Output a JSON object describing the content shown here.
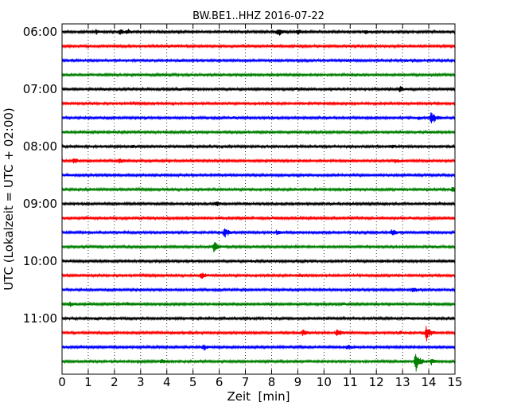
{
  "chart_data": {
    "type": "line",
    "title": "BW.BE1..HHZ 2016-07-22",
    "xlabel": "Zeit  [min]",
    "ylabel": "UTC (Lokalzeit = UTC + 02:00)",
    "xlim": [
      0,
      15
    ],
    "x_ticks": [
      0,
      1,
      2,
      3,
      4,
      5,
      6,
      7,
      8,
      9,
      10,
      11,
      12,
      13,
      14,
      15
    ],
    "y_tick_labels": [
      "06:00",
      "07:00",
      "08:00",
      "09:00",
      "10:00",
      "11:00"
    ],
    "grid": "vertical dotted at each minute",
    "trace_interval_min": 15,
    "trace_colors": [
      "#000000",
      "#ff0000",
      "#0000ff",
      "#008000"
    ],
    "series": [
      {
        "start": "06:00",
        "color": "#000000",
        "events": [
          [
            1.3,
            0.35
          ],
          [
            2.2,
            0.45
          ],
          [
            2.5,
            0.35
          ],
          [
            6.2,
            0.15
          ],
          [
            8.2,
            0.45
          ],
          [
            8.3,
            0.3
          ],
          [
            9.0,
            0.35
          ],
          [
            11.6,
            0.35
          ]
        ]
      },
      {
        "start": "06:15",
        "color": "#ff0000",
        "events": [
          [
            4.1,
            0.15
          ],
          [
            8.1,
            0.12
          ]
        ]
      },
      {
        "start": "06:30",
        "color": "#0000ff",
        "events": [
          [
            4.5,
            0.1
          ],
          [
            10.9,
            0.1
          ],
          [
            13.1,
            0.15
          ]
        ]
      },
      {
        "start": "06:45",
        "color": "#008000",
        "events": [
          [
            7.3,
            0.1
          ]
        ]
      },
      {
        "start": "07:00",
        "color": "#000000",
        "events": [
          [
            1.6,
            0.12
          ],
          [
            4.5,
            0.12
          ],
          [
            8.9,
            0.12
          ],
          [
            10.1,
            0.12
          ],
          [
            12.9,
            0.5
          ]
        ]
      },
      {
        "start": "07:15",
        "color": "#ff0000",
        "events": [
          [
            13.4,
            0.12
          ]
        ]
      },
      {
        "start": "07:30",
        "color": "#0000ff",
        "events": [
          [
            3.0,
            0.1
          ],
          [
            6.5,
            0.12
          ],
          [
            13.6,
            0.25
          ],
          [
            14.1,
            1.3
          ]
        ]
      },
      {
        "start": "07:45",
        "color": "#008000",
        "events": [
          [
            6.5,
            0.1
          ],
          [
            14.0,
            0.12
          ]
        ]
      },
      {
        "start": "08:00",
        "color": "#000000",
        "events": [
          [
            2.7,
            0.2
          ],
          [
            3.8,
            0.12
          ],
          [
            12.6,
            0.15
          ]
        ]
      },
      {
        "start": "08:15",
        "color": "#ff0000",
        "events": [
          [
            0.45,
            0.5
          ],
          [
            2.2,
            0.45
          ],
          [
            12.7,
            0.35
          ]
        ]
      },
      {
        "start": "08:30",
        "color": "#0000ff",
        "events": [
          [
            0.3,
            0.1
          ]
        ]
      },
      {
        "start": "08:45",
        "color": "#008000",
        "events": [
          [
            2.0,
            0.1
          ],
          [
            11.0,
            0.15
          ],
          [
            14.9,
            0.4
          ]
        ]
      },
      {
        "start": "09:00",
        "color": "#000000",
        "events": [
          [
            5.9,
            0.35
          ],
          [
            7.0,
            0.15
          ],
          [
            11.0,
            0.12
          ],
          [
            14.4,
            0.12
          ]
        ]
      },
      {
        "start": "09:15",
        "color": "#ff0000",
        "events": [
          [
            6.0,
            0.1
          ],
          [
            8.1,
            0.1
          ]
        ]
      },
      {
        "start": "09:30",
        "color": "#0000ff",
        "events": [
          [
            6.2,
            0.9
          ],
          [
            8.2,
            0.35
          ],
          [
            12.6,
            0.45
          ]
        ]
      },
      {
        "start": "09:45",
        "color": "#008000",
        "events": [
          [
            5.8,
            1.2
          ],
          [
            7.3,
            0.15
          ],
          [
            14.1,
            0.15
          ]
        ]
      },
      {
        "start": "10:00",
        "color": "#000000",
        "events": [
          [
            7.2,
            0.12
          ],
          [
            12.2,
            0.12
          ]
        ]
      },
      {
        "start": "10:15",
        "color": "#ff0000",
        "events": [
          [
            5.3,
            0.55
          ],
          [
            9.1,
            0.2
          ]
        ]
      },
      {
        "start": "10:30",
        "color": "#0000ff",
        "events": [
          [
            3.0,
            0.15
          ],
          [
            13.4,
            0.5
          ]
        ]
      },
      {
        "start": "10:45",
        "color": "#008000",
        "events": [
          [
            0.3,
            0.4
          ],
          [
            2.5,
            0.15
          ],
          [
            10.7,
            0.15
          ]
        ]
      },
      {
        "start": "11:00",
        "color": "#000000",
        "events": [
          [
            1.3,
            0.12
          ],
          [
            13.2,
            0.12
          ]
        ]
      },
      {
        "start": "11:15",
        "color": "#ff0000",
        "events": [
          [
            4.2,
            0.2
          ],
          [
            9.2,
            0.5
          ],
          [
            10.5,
            0.75
          ],
          [
            12.9,
            0.25
          ],
          [
            13.9,
            1.4
          ]
        ]
      },
      {
        "start": "11:30",
        "color": "#0000ff",
        "events": [
          [
            5.4,
            0.55
          ],
          [
            10.9,
            0.4
          ]
        ]
      },
      {
        "start": "11:45",
        "color": "#008000",
        "events": [
          [
            3.8,
            0.35
          ],
          [
            13.5,
            1.8
          ],
          [
            14.1,
            0.4
          ]
        ]
      }
    ]
  }
}
